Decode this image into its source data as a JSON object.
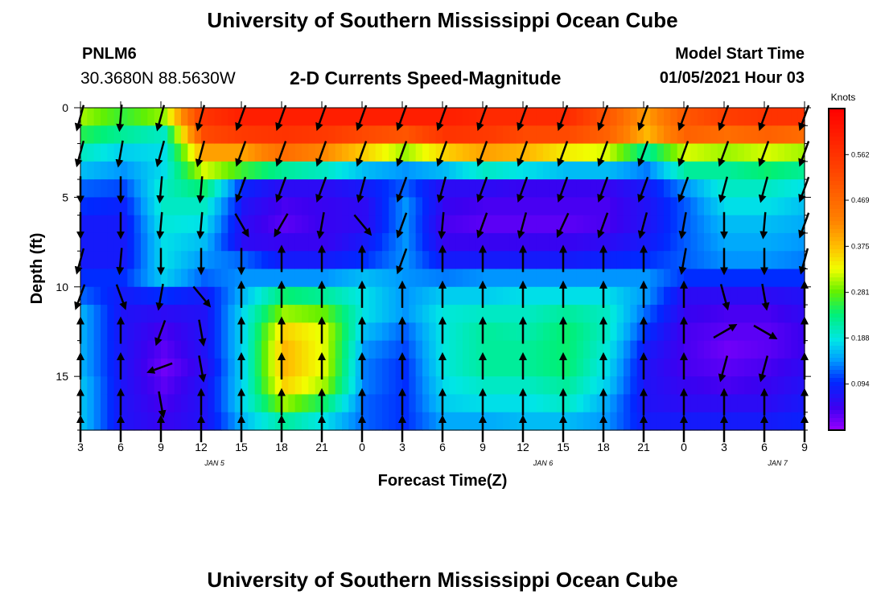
{
  "header": {
    "title": "University of Southern Mississippi Ocean Cube",
    "station": "PNLM6",
    "coordinates": "30.3680N 88.5630W",
    "subtitle": "2-D Currents Speed-Magnitude",
    "model_start_label": "Model Start Time",
    "model_start_value": "01/05/2021 Hour 03"
  },
  "footer": {
    "title": "University of Southern Mississippi Ocean Cube"
  },
  "chart_data": {
    "type": "heatmap",
    "xlabel": "Forecast Time(Z)",
    "ylabel": "Depth (ft)",
    "x_hours": [
      3,
      51
    ],
    "x_ticks": [
      {
        "h": 3,
        "label": "3"
      },
      {
        "h": 6,
        "label": "6"
      },
      {
        "h": 9,
        "label": "9"
      },
      {
        "h": 12,
        "label": "12"
      },
      {
        "h": 15,
        "label": "15"
      },
      {
        "h": 18,
        "label": "18"
      },
      {
        "h": 21,
        "label": "21"
      },
      {
        "h": 24,
        "label": "0"
      },
      {
        "h": 27,
        "label": "3"
      },
      {
        "h": 30,
        "label": "6"
      },
      {
        "h": 33,
        "label": "9"
      },
      {
        "h": 36,
        "label": "12"
      },
      {
        "h": 39,
        "label": "15"
      },
      {
        "h": 42,
        "label": "18"
      },
      {
        "h": 45,
        "label": "21"
      },
      {
        "h": 48,
        "label": "0"
      },
      {
        "h": 51,
        "label": "3"
      },
      {
        "h": 54,
        "label": "6"
      },
      {
        "h": 57,
        "label": "9"
      }
    ],
    "x_range": [
      3,
      57
    ],
    "day_labels": [
      {
        "h": 13,
        "label": "JAN 5"
      },
      {
        "h": 37.5,
        "label": "JAN 6"
      },
      {
        "h": 55,
        "label": "JAN 7"
      }
    ],
    "y_range": [
      0,
      18
    ],
    "y_ticks": [
      0,
      5,
      10,
      15
    ],
    "colorbar": {
      "title": "Knots",
      "range": [
        0,
        0.656
      ],
      "ticks": [
        "0.094",
        "0.188",
        "0.281",
        "0.375",
        "0.469",
        "0.562"
      ],
      "tick_values": [
        0.094,
        0.188,
        0.281,
        0.375,
        0.469,
        0.562
      ]
    },
    "depths_ft": [
      0.5,
      1.5,
      2.5,
      3.5,
      4.5,
      5.5,
      6.5,
      7.5,
      8.5,
      9.5,
      10.5,
      11.5,
      12.5,
      13.5,
      14.5,
      15.5,
      16.5,
      17.5
    ],
    "speed_profiles": [
      {
        "h": 3,
        "v": [
          0.3,
          0.25,
          0.2,
          0.16,
          0.12,
          0.1,
          0.08,
          0.08,
          0.08,
          0.1,
          0.12,
          0.15,
          0.15,
          0.15,
          0.15,
          0.16,
          0.16,
          0.16
        ]
      },
      {
        "h": 6,
        "v": [
          0.26,
          0.22,
          0.17,
          0.14,
          0.11,
          0.09,
          0.08,
          0.08,
          0.08,
          0.1,
          0.08,
          0.07,
          0.07,
          0.07,
          0.07,
          0.07,
          0.07,
          0.07
        ]
      },
      {
        "h": 9,
        "v": [
          0.3,
          0.2,
          0.18,
          0.18,
          0.2,
          0.2,
          0.19,
          0.18,
          0.18,
          0.17,
          0.1,
          0.06,
          0.04,
          0.03,
          0.02,
          0.03,
          0.04,
          0.05
        ]
      },
      {
        "h": 12,
        "v": [
          0.56,
          0.52,
          0.4,
          0.32,
          0.24,
          0.2,
          0.18,
          0.16,
          0.14,
          0.12,
          0.08,
          0.07,
          0.07,
          0.07,
          0.06,
          0.07,
          0.07,
          0.07
        ]
      },
      {
        "h": 15,
        "v": [
          0.6,
          0.55,
          0.4,
          0.26,
          0.09,
          0.07,
          0.06,
          0.06,
          0.12,
          0.14,
          0.16,
          0.18,
          0.18,
          0.18,
          0.18,
          0.18,
          0.18,
          0.16
        ]
      },
      {
        "h": 18,
        "v": [
          0.6,
          0.56,
          0.46,
          0.22,
          0.06,
          0.04,
          0.03,
          0.05,
          0.08,
          0.14,
          0.24,
          0.3,
          0.36,
          0.38,
          0.38,
          0.36,
          0.3,
          0.22
        ]
      },
      {
        "h": 21,
        "v": [
          0.6,
          0.55,
          0.42,
          0.2,
          0.06,
          0.05,
          0.05,
          0.05,
          0.08,
          0.14,
          0.22,
          0.28,
          0.32,
          0.32,
          0.32,
          0.3,
          0.24,
          0.18
        ]
      },
      {
        "h": 24,
        "v": [
          0.6,
          0.52,
          0.36,
          0.16,
          0.08,
          0.06,
          0.06,
          0.08,
          0.1,
          0.16,
          0.18,
          0.18,
          0.16,
          0.14,
          0.13,
          0.13,
          0.12,
          0.12
        ]
      },
      {
        "h": 27,
        "v": [
          0.6,
          0.5,
          0.3,
          0.14,
          0.12,
          0.14,
          0.14,
          0.14,
          0.14,
          0.14,
          0.14,
          0.14,
          0.12,
          0.11,
          0.1,
          0.1,
          0.1,
          0.1
        ]
      },
      {
        "h": 30,
        "v": [
          0.6,
          0.56,
          0.36,
          0.16,
          0.06,
          0.05,
          0.04,
          0.05,
          0.08,
          0.13,
          0.17,
          0.19,
          0.19,
          0.19,
          0.19,
          0.18,
          0.17,
          0.15
        ]
      },
      {
        "h": 33,
        "v": [
          0.58,
          0.55,
          0.4,
          0.2,
          0.06,
          0.04,
          0.03,
          0.05,
          0.08,
          0.14,
          0.17,
          0.2,
          0.22,
          0.22,
          0.22,
          0.2,
          0.18,
          0.15
        ]
      },
      {
        "h": 36,
        "v": [
          0.58,
          0.52,
          0.38,
          0.18,
          0.05,
          0.04,
          0.03,
          0.05,
          0.08,
          0.14,
          0.18,
          0.2,
          0.21,
          0.22,
          0.22,
          0.2,
          0.18,
          0.16
        ]
      },
      {
        "h": 39,
        "v": [
          0.58,
          0.52,
          0.34,
          0.16,
          0.05,
          0.04,
          0.03,
          0.05,
          0.08,
          0.14,
          0.18,
          0.22,
          0.24,
          0.24,
          0.24,
          0.22,
          0.2,
          0.16
        ]
      },
      {
        "h": 42,
        "v": [
          0.5,
          0.48,
          0.32,
          0.16,
          0.05,
          0.04,
          0.04,
          0.06,
          0.09,
          0.14,
          0.18,
          0.2,
          0.2,
          0.19,
          0.18,
          0.17,
          0.15,
          0.14
        ]
      },
      {
        "h": 45,
        "v": [
          0.4,
          0.38,
          0.22,
          0.13,
          0.08,
          0.07,
          0.07,
          0.08,
          0.1,
          0.14,
          0.14,
          0.12,
          0.1,
          0.08,
          0.07,
          0.07,
          0.07,
          0.08
        ]
      },
      {
        "h": 48,
        "v": [
          0.5,
          0.48,
          0.32,
          0.22,
          0.14,
          0.12,
          0.12,
          0.12,
          0.12,
          0.1,
          0.06,
          0.05,
          0.04,
          0.04,
          0.04,
          0.05,
          0.06,
          0.08
        ]
      },
      {
        "h": 51,
        "v": [
          0.54,
          0.46,
          0.3,
          0.22,
          0.2,
          0.18,
          0.16,
          0.15,
          0.14,
          0.1,
          0.06,
          0.04,
          0.03,
          0.02,
          0.03,
          0.04,
          0.06,
          0.08
        ]
      },
      {
        "h": 54,
        "v": [
          0.56,
          0.48,
          0.32,
          0.24,
          0.2,
          0.18,
          0.16,
          0.15,
          0.14,
          0.1,
          0.06,
          0.04,
          0.03,
          0.03,
          0.04,
          0.05,
          0.06,
          0.08
        ]
      },
      {
        "h": 57,
        "v": [
          0.56,
          0.46,
          0.3,
          0.22,
          0.18,
          0.16,
          0.15,
          0.14,
          0.13,
          0.1,
          0.07,
          0.06,
          0.05,
          0.05,
          0.06,
          0.07,
          0.08,
          0.09
        ]
      }
    ],
    "vector_depths_ft": [
      0.5,
      2.5,
      4.5,
      6.5,
      8.5,
      10.5,
      12.5,
      14.5,
      16.5,
      18
    ],
    "vectors_deg": [
      {
        "h": 3,
        "d": [
          195,
          195,
          180,
          180,
          195,
          200,
          0,
          0,
          0,
          0
        ]
      },
      {
        "h": 6,
        "d": [
          185,
          190,
          180,
          180,
          185,
          160,
          0,
          0,
          0,
          0
        ]
      },
      {
        "h": 9,
        "d": [
          195,
          195,
          185,
          185,
          180,
          190,
          200,
          250,
          170,
          0
        ]
      },
      {
        "h": 12,
        "d": [
          195,
          195,
          185,
          185,
          180,
          140,
          170,
          170,
          0,
          0
        ]
      },
      {
        "h": 15,
        "d": [
          200,
          200,
          200,
          150,
          180,
          0,
          0,
          0,
          0,
          0
        ]
      },
      {
        "h": 18,
        "d": [
          200,
          200,
          200,
          210,
          0,
          0,
          0,
          0,
          0,
          0
        ]
      },
      {
        "h": 21,
        "d": [
          200,
          200,
          200,
          190,
          0,
          0,
          0,
          0,
          0,
          0
        ]
      },
      {
        "h": 24,
        "d": [
          200,
          200,
          195,
          140,
          0,
          0,
          0,
          0,
          0,
          0
        ]
      },
      {
        "h": 27,
        "d": [
          200,
          200,
          200,
          200,
          200,
          0,
          0,
          0,
          0,
          0
        ]
      },
      {
        "h": 30,
        "d": [
          200,
          200,
          195,
          185,
          0,
          0,
          0,
          0,
          0,
          0
        ]
      },
      {
        "h": 33,
        "d": [
          200,
          200,
          200,
          200,
          0,
          0,
          0,
          0,
          0,
          0
        ]
      },
      {
        "h": 36,
        "d": [
          200,
          200,
          200,
          195,
          0,
          0,
          0,
          0,
          0,
          0
        ]
      },
      {
        "h": 39,
        "d": [
          200,
          200,
          200,
          205,
          0,
          0,
          0,
          0,
          0,
          0
        ]
      },
      {
        "h": 42,
        "d": [
          200,
          200,
          200,
          200,
          0,
          0,
          0,
          0,
          0,
          0
        ]
      },
      {
        "h": 45,
        "d": [
          200,
          200,
          200,
          195,
          0,
          0,
          0,
          0,
          0,
          0
        ]
      },
      {
        "h": 48,
        "d": [
          200,
          200,
          200,
          190,
          190,
          0,
          0,
          0,
          0,
          0
        ]
      },
      {
        "h": 51,
        "d": [
          200,
          200,
          195,
          180,
          180,
          165,
          60,
          195,
          0,
          0
        ]
      },
      {
        "h": 54,
        "d": [
          200,
          200,
          195,
          185,
          180,
          170,
          120,
          195,
          0,
          0
        ]
      },
      {
        "h": 57,
        "d": [
          200,
          200,
          200,
          200,
          195,
          0,
          0,
          0,
          0,
          0
        ]
      }
    ]
  }
}
